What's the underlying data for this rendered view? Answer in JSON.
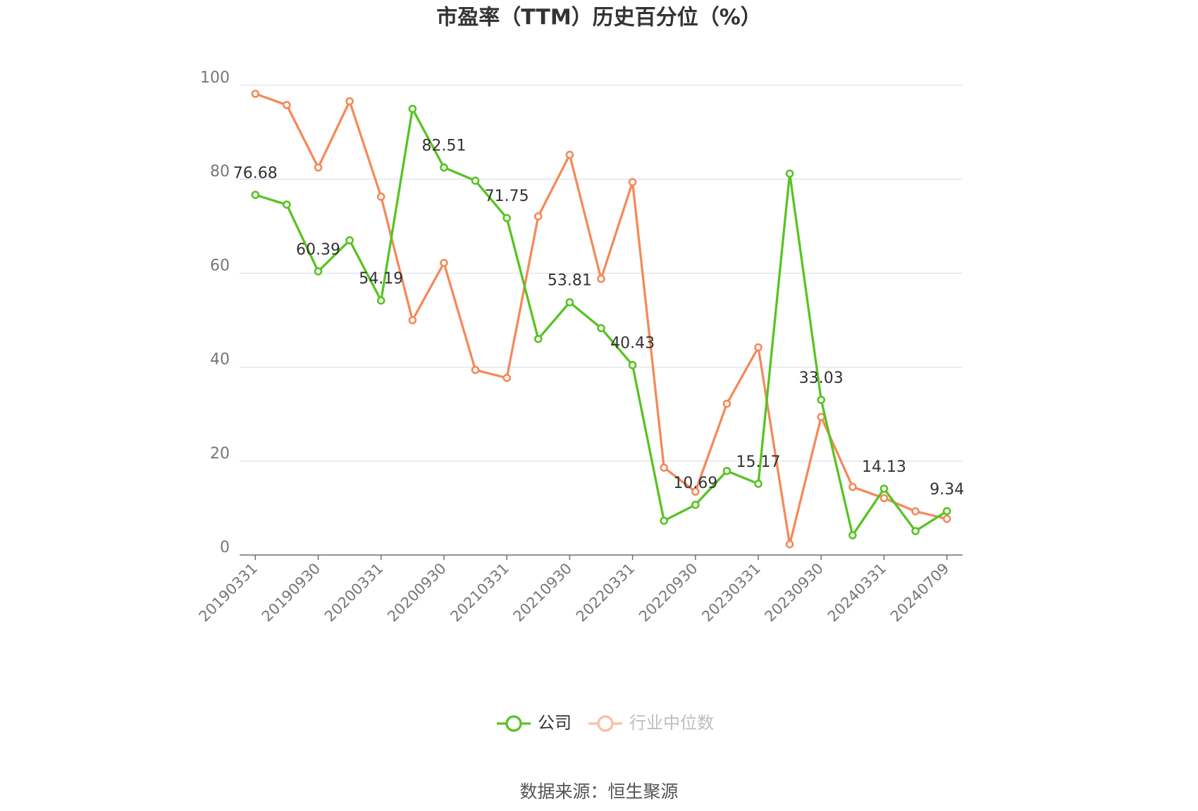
{
  "chart_data": {
    "type": "line",
    "title": "市盈率（TTM）历史百分位（%）",
    "source": "数据来源：恒生聚源",
    "categories": [
      "20190331",
      null,
      "20190930",
      null,
      "20200331",
      null,
      "20200930",
      null,
      "20210331",
      null,
      "20210930",
      null,
      "20220331",
      null,
      "20220930",
      null,
      "20230331",
      null,
      "20230930",
      null,
      "20240331",
      null,
      "20240709"
    ],
    "series": [
      {
        "name": "公司",
        "color": "#58c322",
        "values": [
          76.68,
          74.6,
          60.39,
          67.0,
          54.19,
          95.0,
          82.51,
          79.7,
          71.75,
          46.0,
          53.81,
          48.3,
          40.43,
          7.3,
          10.69,
          17.9,
          15.17,
          81.2,
          33.03,
          4.2,
          14.13,
          5.1,
          9.34
        ]
      },
      {
        "name": "行业中位数",
        "color": "#f5895a",
        "values": [
          98.2,
          95.8,
          82.5,
          96.6,
          76.3,
          50.0,
          62.2,
          39.4,
          37.7,
          72.1,
          85.2,
          58.8,
          79.4,
          18.6,
          13.5,
          32.2,
          44.2,
          2.3,
          29.4,
          14.5,
          12.1,
          9.3,
          7.7
        ]
      }
    ],
    "ylim": [
      0,
      100
    ],
    "yticks": [
      0,
      20,
      40,
      60,
      80,
      100
    ],
    "grid": true
  }
}
